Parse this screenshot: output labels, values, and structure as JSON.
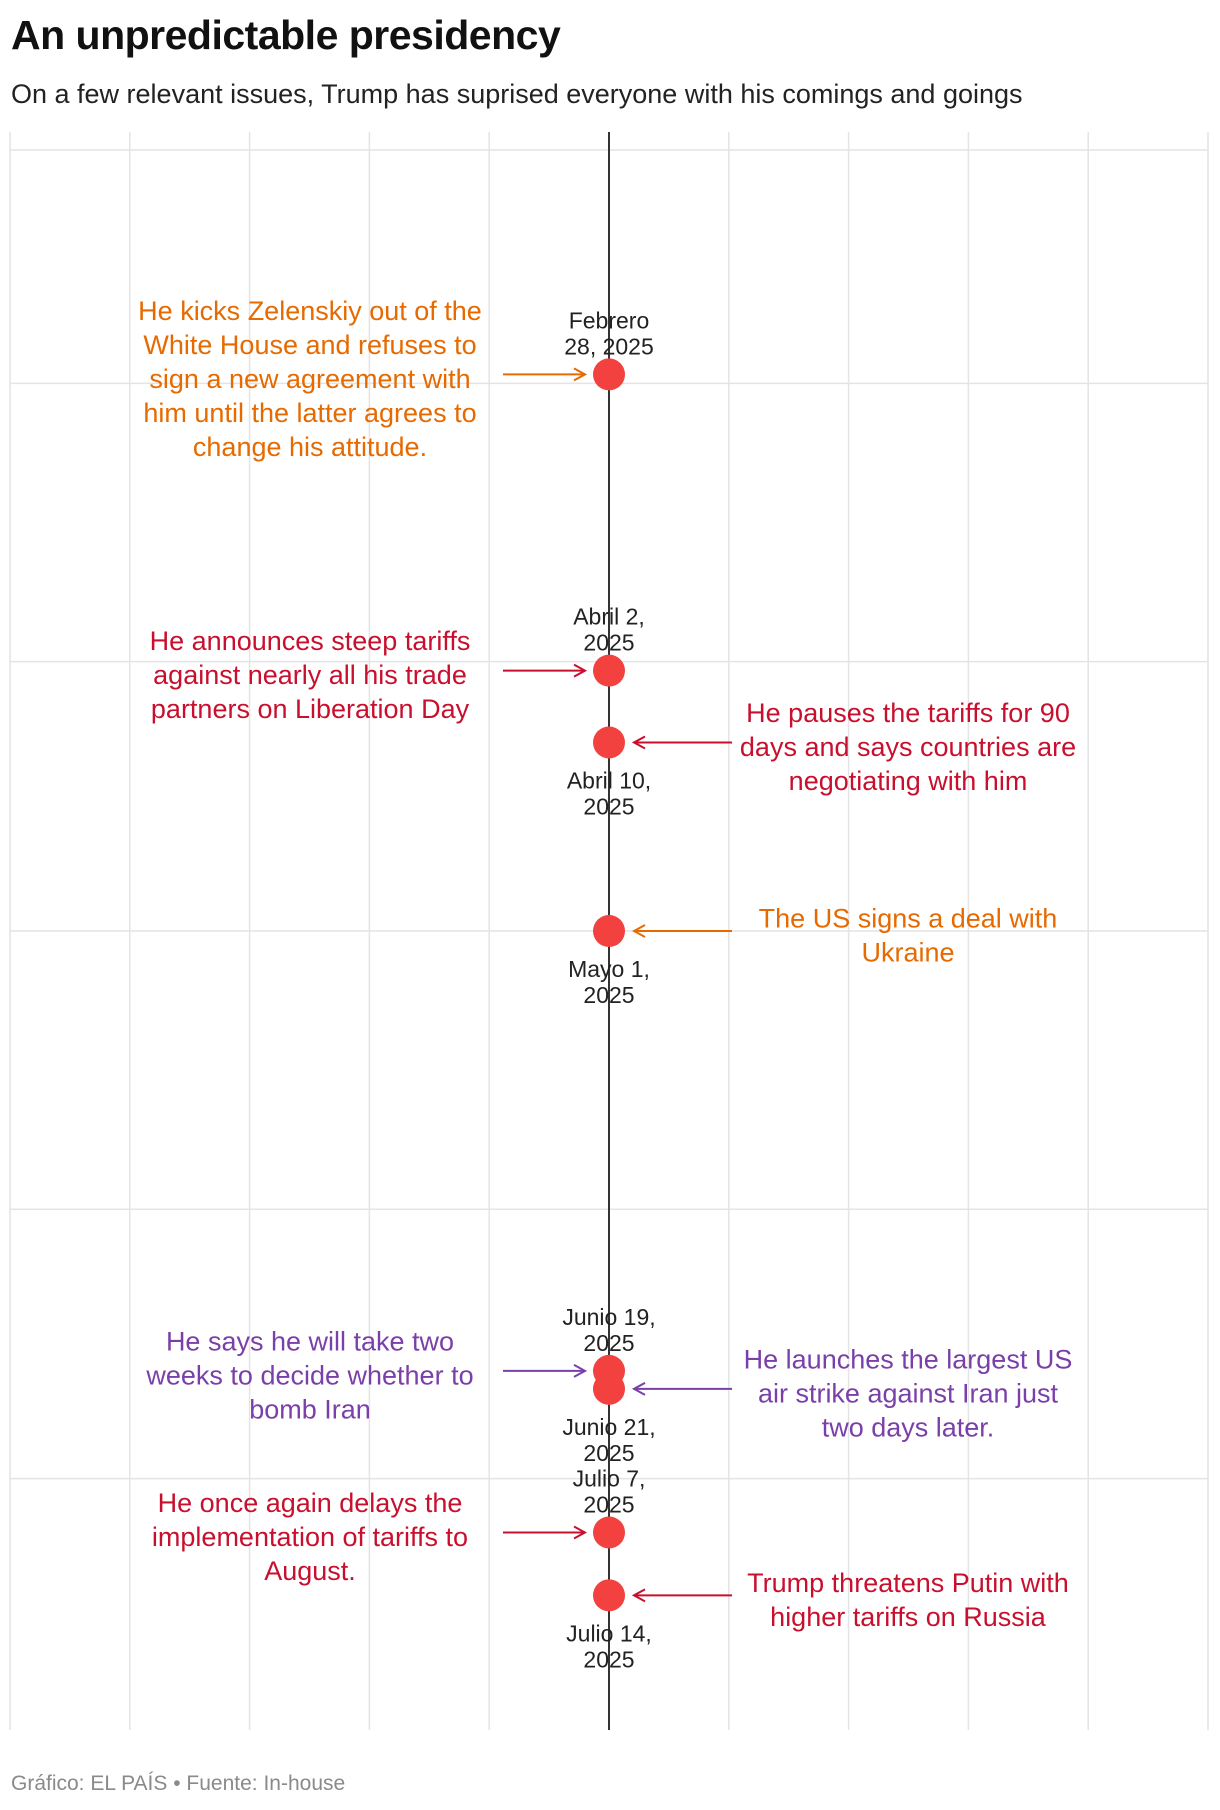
{
  "header": {
    "title": "An unpredictable presidency",
    "subtitle": "On a few relevant issues, Trump has suprised everyone with his comings and goings"
  },
  "footer": {
    "credit": "Gráfico: EL PAÍS • Fuente: In-house"
  },
  "colors": {
    "marker": "#f2413f",
    "axis": "#333333",
    "grid": "#e4e4e4",
    "orange": "#e66a00",
    "red": "#c8102e",
    "purple": "#7a3fa8"
  },
  "chart_data": {
    "type": "scatter",
    "title": "An unpredictable presidency",
    "subtitle": "On a few relevant issues, Trump has suprised everyone with his comings and goings",
    "orientation": "vertical timeline",
    "y_axis": "date",
    "ylim": [
      "2025-02-01",
      "2025-07-29"
    ],
    "grid": true,
    "gridlines": [
      "2025-03-01",
      "2025-04-01",
      "2025-05-01",
      "2025-06-01",
      "2025-07-01"
    ],
    "events": [
      {
        "date": "2025-02-28",
        "date_label": [
          "Febrero",
          "28, 2025"
        ],
        "date_label_position": "above",
        "text": [
          "He kicks Zelenskiy out of the",
          "White House and refuses to",
          "sign a new agreement with",
          "him until the latter agrees to",
          "change his attitude."
        ],
        "side": "left",
        "color": "orange"
      },
      {
        "date": "2025-04-02",
        "date_label": [
          "Abril 2,",
          "2025"
        ],
        "date_label_position": "above",
        "text": [
          "He announces steep tariffs",
          "against nearly all his trade",
          "partners on Liberation Day"
        ],
        "side": "left",
        "color": "red"
      },
      {
        "date": "2025-04-10",
        "date_label": [
          "Abril 10,",
          "2025"
        ],
        "date_label_position": "below",
        "text": [
          "He pauses the tariffs for 90",
          "days and says countries are",
          "negotiating with him"
        ],
        "side": "right",
        "color": "red"
      },
      {
        "date": "2025-05-01",
        "date_label": [
          "Mayo 1,",
          "2025"
        ],
        "date_label_position": "below",
        "text": [
          "The US signs a deal with",
          "Ukraine"
        ],
        "side": "right",
        "color": "orange"
      },
      {
        "date": "2025-06-19",
        "date_label": [
          "Junio 19,",
          "2025"
        ],
        "date_label_position": "above",
        "text": [
          "He says he will take two",
          "weeks to decide whether to",
          "bomb Iran"
        ],
        "side": "left",
        "color": "purple"
      },
      {
        "date": "2025-06-21",
        "date_label": [
          "Junio 21,",
          "2025"
        ],
        "date_label_position": "below",
        "text": [
          "He launches the largest US",
          "air strike against Iran just",
          "two days later."
        ],
        "side": "right",
        "color": "purple"
      },
      {
        "date": "2025-07-07",
        "date_label": [
          "Julio 7,",
          "2025"
        ],
        "date_label_position": "above",
        "text": [
          "He once again delays the",
          "implementation of tariffs to",
          "August."
        ],
        "side": "left",
        "color": "red"
      },
      {
        "date": "2025-07-14",
        "date_label": [
          "Julio 14,",
          "2025"
        ],
        "date_label_position": "below",
        "text": [
          "Trump threatens Putin with",
          "higher tariffs on Russia"
        ],
        "side": "right",
        "color": "red"
      }
    ]
  }
}
